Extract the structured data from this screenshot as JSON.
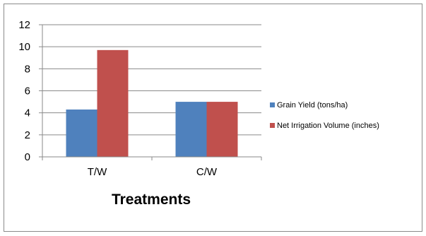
{
  "chart_data": {
    "type": "bar",
    "title": "",
    "xlabel": "Treatments",
    "ylabel": "",
    "categories": [
      "T/W",
      "C/W"
    ],
    "ylim": [
      0,
      12
    ],
    "yticks": [
      0,
      2,
      4,
      6,
      8,
      10,
      12
    ],
    "grid": true,
    "legend_position": "right",
    "series": [
      {
        "name": "Grain Yield (tons/ha)",
        "values": [
          4.3,
          5.0
        ],
        "color": "#4f81bd"
      },
      {
        "name": "Net Irrigation Volume (inches)",
        "values": [
          9.7,
          5.0
        ],
        "color": "#c0504d"
      }
    ]
  }
}
